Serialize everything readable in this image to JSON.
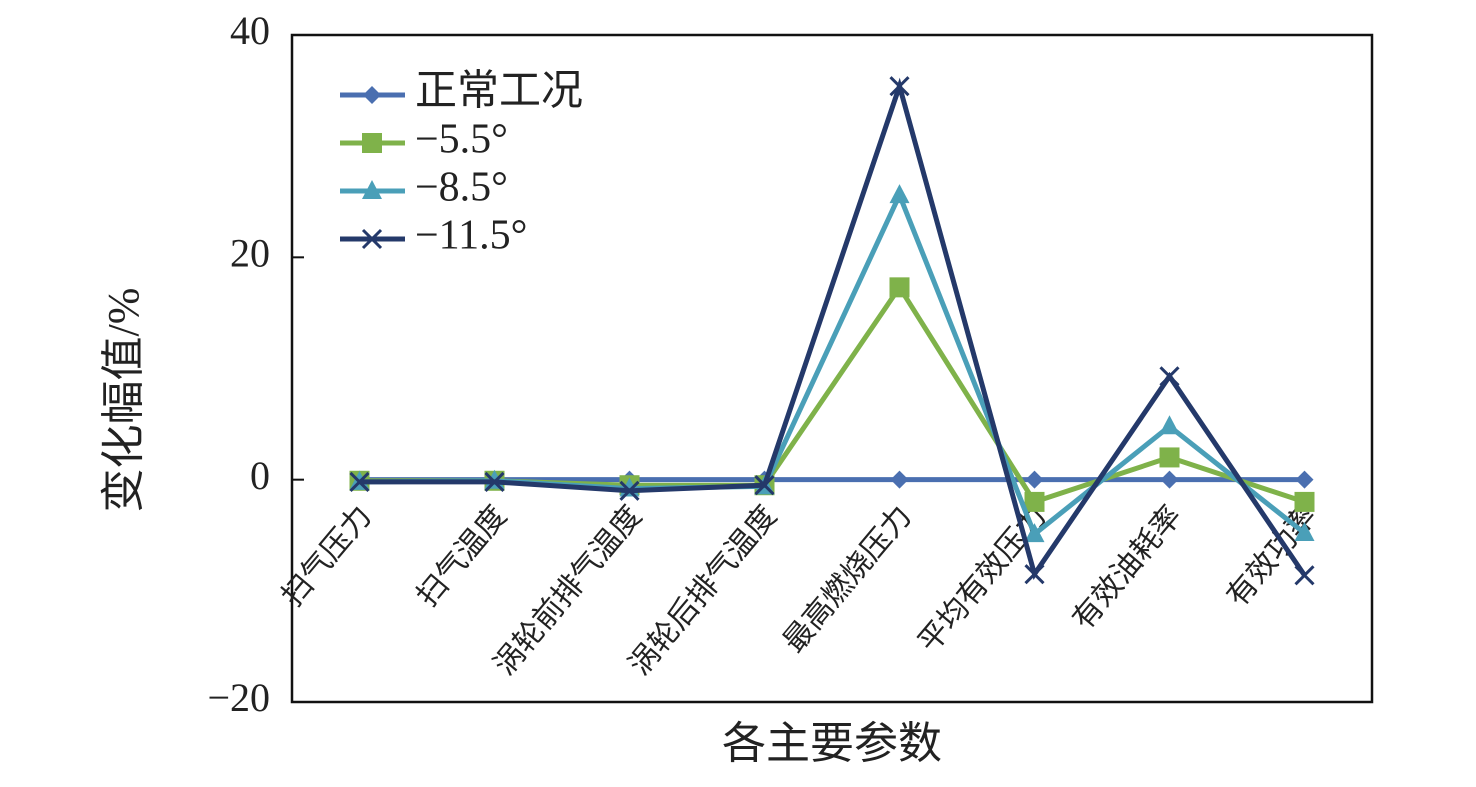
{
  "chart_data": {
    "type": "line",
    "xlabel": "各主要参数",
    "ylabel": "变化幅值/%",
    "categories": [
      "扫气压力",
      "扫气温度",
      "涡轮前排气温度",
      "涡轮后排气温度",
      "最高燃烧压力",
      "平均有效压力",
      "有效油耗率",
      "有效功率"
    ],
    "series": [
      {
        "name": "正常工况",
        "color": "#4a6fb0",
        "marker": "diamond",
        "values": [
          0,
          0,
          0,
          0,
          0,
          0,
          0,
          0
        ]
      },
      {
        "name": "−5.5°",
        "color": "#7fb24a",
        "marker": "square",
        "values": [
          -0.1,
          -0.1,
          -0.5,
          -0.5,
          17.3,
          -2,
          2,
          -2
        ]
      },
      {
        "name": "−8.5°",
        "color": "#4a9fb8",
        "marker": "triangle",
        "values": [
          -0.2,
          -0.1,
          -0.8,
          -0.6,
          25.6,
          -4.9,
          4.8,
          -4.8
        ]
      },
      {
        "name": "−11.5°",
        "color": "#24396a",
        "marker": "x",
        "values": [
          -0.2,
          -0.2,
          -1,
          -0.5,
          35.4,
          -8.5,
          9.3,
          -8.6
        ]
      }
    ],
    "ylim": [
      -20,
      40
    ],
    "yticks": [
      {
        "value": -20,
        "label": "−20"
      },
      0,
      20,
      40
    ],
    "legend": "upper-left"
  }
}
